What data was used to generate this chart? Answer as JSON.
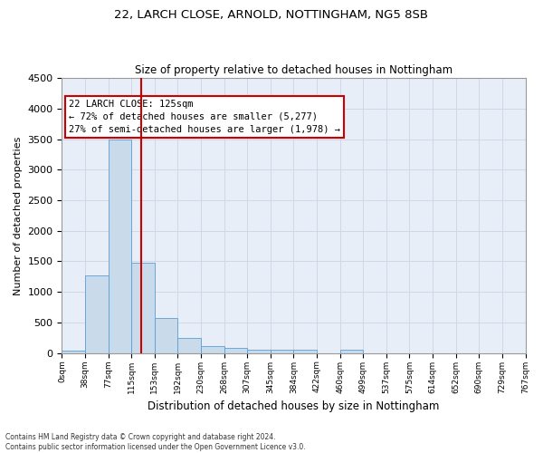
{
  "title": "22, LARCH CLOSE, ARNOLD, NOTTINGHAM, NG5 8SB",
  "subtitle": "Size of property relative to detached houses in Nottingham",
  "xlabel": "Distribution of detached houses by size in Nottingham",
  "ylabel": "Number of detached properties",
  "bin_labels": [
    "0sqm",
    "38sqm",
    "77sqm",
    "115sqm",
    "153sqm",
    "192sqm",
    "230sqm",
    "268sqm",
    "307sqm",
    "345sqm",
    "384sqm",
    "422sqm",
    "460sqm",
    "499sqm",
    "537sqm",
    "575sqm",
    "614sqm",
    "652sqm",
    "690sqm",
    "729sqm",
    "767sqm"
  ],
  "bar_values": [
    40,
    1270,
    3500,
    1480,
    570,
    240,
    120,
    80,
    50,
    50,
    50,
    0,
    50,
    0,
    0,
    0,
    0,
    0,
    0,
    0
  ],
  "bar_color": "#c9daea",
  "bar_edge_color": "#5a9fd4",
  "grid_color": "#d0d8e8",
  "background_color": "#e8eef8",
  "vline_index": 3.42,
  "vline_color": "#cc0000",
  "annotation_text": "22 LARCH CLOSE: 125sqm\n← 72% of detached houses are smaller (5,277)\n27% of semi-detached houses are larger (1,978) →",
  "annotation_box_color": "#ffffff",
  "annotation_border_color": "#cc0000",
  "ylim": [
    0,
    4500
  ],
  "yticks": [
    0,
    500,
    1000,
    1500,
    2000,
    2500,
    3000,
    3500,
    4000,
    4500
  ],
  "footer_line1": "Contains HM Land Registry data © Crown copyright and database right 2024.",
  "footer_line2": "Contains public sector information licensed under the Open Government Licence v3.0."
}
